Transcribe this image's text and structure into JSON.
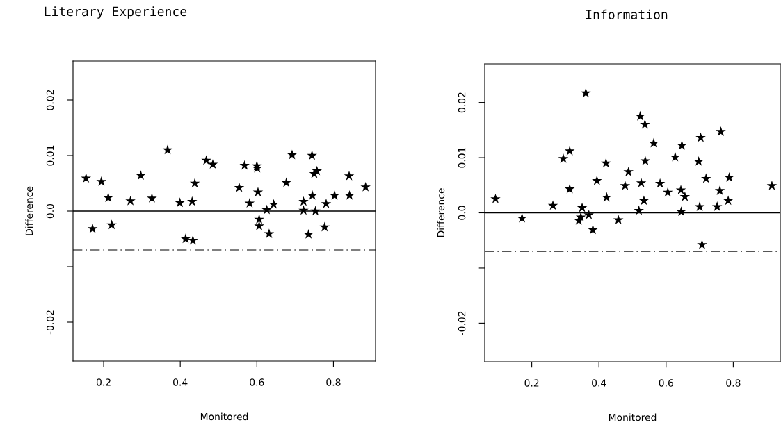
{
  "chart_data": [
    {
      "type": "scatter",
      "title": "Literary Experience",
      "xlabel": "Monitored",
      "ylabel": "Difference",
      "marker": "star",
      "grid": false,
      "legend": false,
      "xlim": [
        0.12,
        0.91
      ],
      "ylim": [
        -0.027,
        0.027
      ],
      "xticks": [
        {
          "value": 0.2,
          "label": "0.2"
        },
        {
          "value": 0.4,
          "label": "0.4"
        },
        {
          "value": 0.6,
          "label": "0.6"
        },
        {
          "value": 0.8,
          "label": "0.8"
        }
      ],
      "yticks": [
        {
          "value": -0.02,
          "label": "-0.02"
        },
        {
          "value": -0.01,
          "label": null
        },
        {
          "value": 0.0,
          "label": "0.0"
        },
        {
          "value": 0.01,
          "label": "0.01"
        },
        {
          "value": 0.02,
          "label": "0.02"
        }
      ],
      "ref_lines": [
        {
          "axis": "y",
          "value": 0,
          "label": null,
          "color": "#000000",
          "line_style": "solid"
        },
        {
          "axis": "y",
          "value": -0.007,
          "label": null,
          "color": "#555555",
          "line_style": "dashed"
        }
      ],
      "series": [
        {
          "color": "#000000",
          "x": [
            0.154,
            0.171,
            0.194,
            0.212,
            0.221,
            0.27,
            0.297,
            0.326,
            0.367,
            0.399,
            0.414,
            0.431,
            0.433,
            0.438,
            0.468,
            0.485,
            0.554,
            0.568,
            0.581,
            0.6,
            0.601,
            0.603,
            0.606,
            0.606,
            0.626,
            0.632,
            0.644,
            0.677,
            0.692,
            0.722,
            0.722,
            0.735,
            0.744,
            0.745,
            0.75,
            0.757,
            0.753,
            0.777,
            0.781,
            0.803,
            0.841,
            0.842,
            0.884
          ],
          "values": [
            0.0059,
            -0.0032,
            0.0053,
            0.0024,
            -0.0025,
            0.0018,
            0.0064,
            0.0023,
            0.011,
            0.0015,
            -0.005,
            0.0017,
            -0.0053,
            0.005,
            0.0091,
            0.0084,
            0.0042,
            0.0082,
            0.0014,
            0.0081,
            0.0077,
            0.0034,
            -0.0015,
            -0.0027,
            0.0002,
            -0.0041,
            0.0012,
            0.0051,
            0.0101,
            0.0017,
            0.0001,
            -0.0042,
            0.01,
            0.0028,
            0.0067,
            0.0072,
            0.0,
            -0.0029,
            0.0013,
            0.0028,
            0.0063,
            0.0028,
            0.0043
          ]
        }
      ]
    },
    {
      "type": "scatter",
      "title": "Information",
      "xlabel": "Monitored",
      "ylabel": "Difference",
      "marker": "star",
      "grid": false,
      "legend": false,
      "xlim": [
        0.06,
        0.94
      ],
      "ylim": [
        -0.027,
        0.027
      ],
      "xticks": [
        {
          "value": 0.2,
          "label": "0.2"
        },
        {
          "value": 0.4,
          "label": "0.4"
        },
        {
          "value": 0.6,
          "label": "0.6"
        },
        {
          "value": 0.8,
          "label": "0.8"
        }
      ],
      "yticks": [
        {
          "value": -0.02,
          "label": "-0.02"
        },
        {
          "value": -0.01,
          "label": null
        },
        {
          "value": 0.0,
          "label": "0.0"
        },
        {
          "value": 0.01,
          "label": "0.01"
        },
        {
          "value": 0.02,
          "label": "0.02"
        }
      ],
      "ref_lines": [
        {
          "axis": "y",
          "value": 0,
          "label": null,
          "color": "#000000",
          "line_style": "solid"
        },
        {
          "axis": "y",
          "value": -0.007,
          "label": null,
          "color": "#555555",
          "line_style": "dashed"
        }
      ],
      "series": [
        {
          "color": "#000000",
          "x": [
            0.092,
            0.171,
            0.263,
            0.294,
            0.313,
            0.313,
            0.34,
            0.346,
            0.35,
            0.361,
            0.37,
            0.382,
            0.394,
            0.421,
            0.423,
            0.458,
            0.478,
            0.488,
            0.519,
            0.523,
            0.526,
            0.534,
            0.537,
            0.538,
            0.563,
            0.582,
            0.605,
            0.627,
            0.644,
            0.645,
            0.647,
            0.656,
            0.697,
            0.7,
            0.703,
            0.707,
            0.719,
            0.752,
            0.76,
            0.763,
            0.785,
            0.788,
            0.915
          ],
          "values": [
            0.0025,
            -0.001,
            0.0013,
            0.0098,
            0.0112,
            0.0043,
            -0.0014,
            -0.0008,
            0.0009,
            0.0217,
            -0.0004,
            -0.0031,
            0.0058,
            0.009,
            0.0028,
            -0.0013,
            0.0049,
            0.0074,
            0.0004,
            0.0175,
            0.0054,
            0.0022,
            0.016,
            0.0094,
            0.0126,
            0.0053,
            0.0037,
            0.0101,
            0.0041,
            0.0002,
            0.0122,
            0.0029,
            0.0093,
            0.0011,
            0.0136,
            -0.0058,
            0.0062,
            0.0011,
            0.004,
            0.0147,
            0.0022,
            0.0064,
            0.0049
          ]
        }
      ]
    }
  ]
}
